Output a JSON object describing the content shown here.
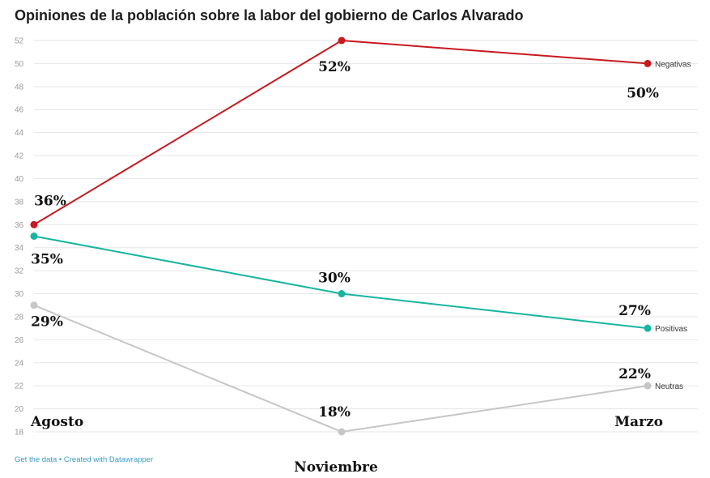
{
  "footer": {
    "source_text": "Get the data • Created with Datawrapper"
  },
  "chart_data": {
    "type": "line",
    "title": "Opiniones de la población sobre la labor del gobierno de Carlos Alvarado",
    "categories": [
      "Agosto",
      "Noviembre",
      "Marzo"
    ],
    "ylim": [
      18,
      52
    ],
    "yticks": [
      18,
      20,
      22,
      24,
      26,
      28,
      30,
      32,
      34,
      36,
      38,
      40,
      42,
      44,
      46,
      48,
      50,
      52
    ],
    "grid": true,
    "series": [
      {
        "name": "Negativas",
        "values": [
          36,
          52,
          50
        ],
        "labels": [
          "36%",
          "52%",
          "50%"
        ],
        "color": "#c8191f"
      },
      {
        "name": "Positivas",
        "values": [
          35,
          30,
          27
        ],
        "labels": [
          "35%",
          "30%",
          "27%"
        ],
        "color": "#17b5a0"
      },
      {
        "name": "Neutras",
        "values": [
          29,
          18,
          22
        ],
        "labels": [
          "29%",
          "18%",
          "22%"
        ],
        "color": "#c6c6c6"
      }
    ]
  }
}
